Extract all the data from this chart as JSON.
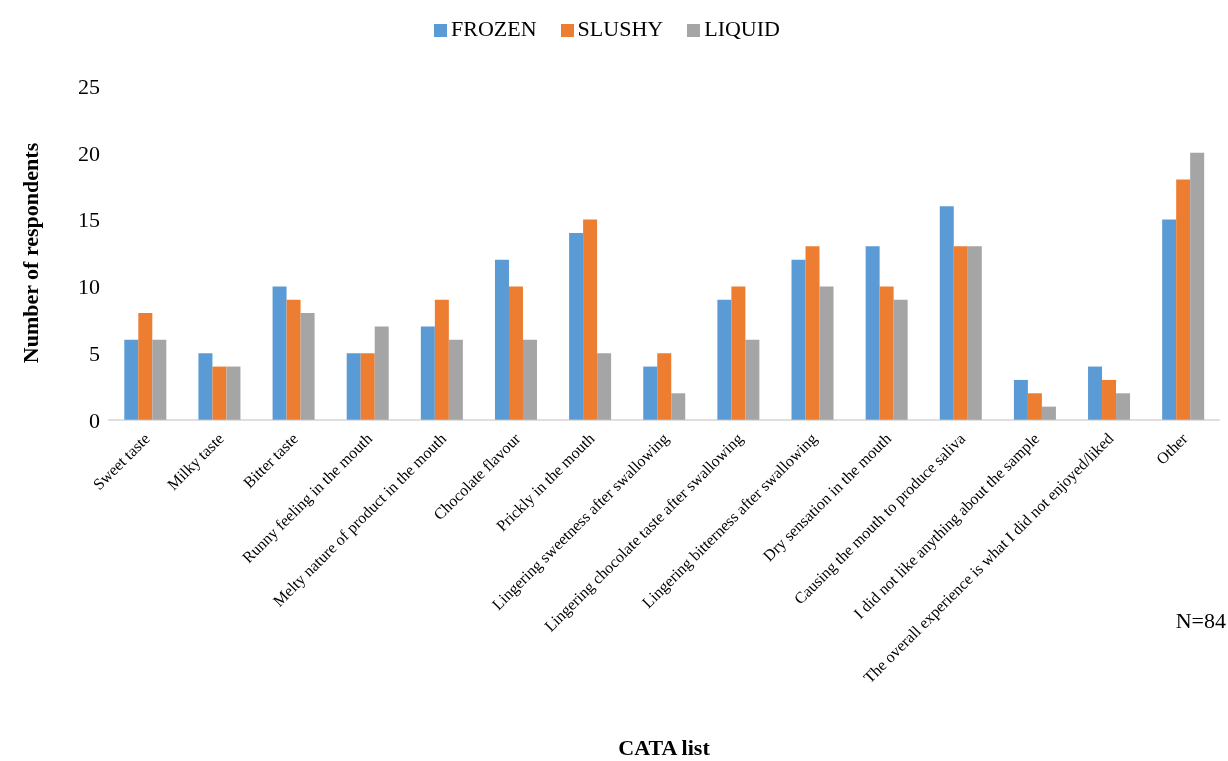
{
  "chart_data": {
    "type": "bar",
    "xlabel": "CATA list",
    "ylabel": "Number of respondents",
    "categories": [
      "Sweet taste",
      "Milky taste",
      "Bitter taste",
      "Runny feeling in the mouth",
      "Melty nature of product in the mouth",
      "Chocolate flavour",
      "Prickly in the mouth",
      "Lingering sweetness after swallowing",
      "Lingering chocolate taste after swallowing",
      "Lingering bitterness after swallowing",
      "Dry sensation in the mouth",
      "Causing the mouth to produce saliva",
      "I did not like anything about the sample",
      "The overall experience is what I did not enjoyed/liked",
      "Other"
    ],
    "series": [
      {
        "name": "FROZEN",
        "color": "#5b9bd5",
        "values": [
          6,
          5,
          10,
          5,
          7,
          12,
          14,
          4,
          9,
          12,
          13,
          16,
          3,
          4,
          15
        ]
      },
      {
        "name": "SLUSHY",
        "color": "#ed7d31",
        "values": [
          8,
          4,
          9,
          5,
          9,
          10,
          15,
          5,
          10,
          13,
          10,
          13,
          2,
          3,
          18
        ]
      },
      {
        "name": "LIQUID",
        "color": "#a5a5a5",
        "values": [
          6,
          4,
          8,
          7,
          6,
          6,
          5,
          2,
          6,
          10,
          9,
          13,
          1,
          2,
          20
        ]
      }
    ],
    "ylim": [
      0,
      25
    ],
    "yticks": [
      0,
      5,
      10,
      15,
      20,
      25
    ],
    "grid": false,
    "legend": "top",
    "annotations": [
      "N=84"
    ]
  }
}
